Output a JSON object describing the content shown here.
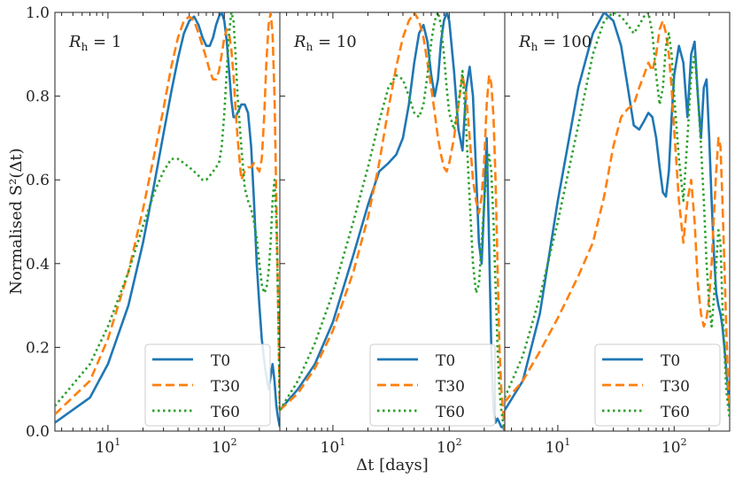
{
  "chart_data": {
    "type": "line",
    "ylabel": "Normalised S²(Δt)",
    "xlabel": "Δt [days]",
    "xscale": "log",
    "xlim": [
      3.5,
      300
    ],
    "ylim": [
      0.0,
      1.0
    ],
    "yticks": [
      "0.0",
      "0.2",
      "0.4",
      "0.6",
      "0.8",
      "1.0"
    ],
    "xticks": [
      {
        "value": 10,
        "base": "10",
        "exp": "1"
      },
      {
        "value": 100,
        "base": "10",
        "exp": "2"
      }
    ],
    "colors": {
      "T0": "#1f77b4",
      "T30": "#ff7f0e",
      "T60": "#2ca02c"
    },
    "legend": {
      "placement": "lower-center",
      "entries": [
        "T0",
        "T30",
        "T60"
      ]
    },
    "panels": [
      {
        "title_base": "R",
        "title_sub": "h",
        "title_value": " = 1",
        "series": [
          {
            "name": "T0",
            "x": [
              3.5,
              7,
              10,
              15,
              20,
              25,
              30,
              35,
              40,
              45,
              50,
              55,
              60,
              65,
              70,
              75,
              80,
              85,
              90,
              95,
              100,
              105,
              110,
              115,
              120,
              125,
              130,
              140,
              150,
              160,
              170,
              180,
              190,
              200,
              210,
              220,
              230,
              240,
              250,
              260,
              270,
              280,
              290,
              300
            ],
            "y": [
              0.02,
              0.08,
              0.16,
              0.3,
              0.45,
              0.59,
              0.71,
              0.81,
              0.89,
              0.95,
              0.98,
              0.99,
              0.97,
              0.94,
              0.92,
              0.92,
              0.94,
              0.97,
              0.99,
              1.0,
              0.98,
              0.93,
              0.86,
              0.79,
              0.75,
              0.75,
              0.76,
              0.78,
              0.78,
              0.76,
              0.68,
              0.55,
              0.4,
              0.3,
              0.22,
              0.17,
              0.13,
              0.1,
              0.13,
              0.16,
              0.12,
              0.06,
              0.03,
              0.01
            ]
          },
          {
            "name": "T30",
            "x": [
              3.5,
              7,
              10,
              15,
              20,
              25,
              30,
              35,
              40,
              45,
              50,
              55,
              60,
              65,
              70,
              75,
              80,
              85,
              90,
              95,
              100,
              105,
              110,
              115,
              120,
              125,
              130,
              140,
              150,
              160,
              170,
              180,
              190,
              200,
              210,
              220,
              230,
              240,
              250,
              260,
              270,
              280,
              290,
              300
            ],
            "y": [
              0.04,
              0.12,
              0.22,
              0.38,
              0.53,
              0.66,
              0.77,
              0.87,
              0.94,
              0.98,
              0.99,
              0.98,
              0.95,
              0.92,
              0.89,
              0.86,
              0.84,
              0.84,
              0.86,
              0.9,
              0.94,
              0.96,
              0.95,
              0.91,
              0.85,
              0.77,
              0.7,
              0.6,
              0.62,
              0.63,
              0.63,
              0.64,
              0.63,
              0.62,
              0.65,
              0.75,
              0.88,
              0.97,
              1.0,
              0.95,
              0.8,
              0.55,
              0.3,
              0.05
            ]
          },
          {
            "name": "T60",
            "x": [
              3.5,
              7,
              10,
              15,
              20,
              25,
              30,
              35,
              40,
              45,
              50,
              55,
              60,
              65,
              70,
              75,
              80,
              85,
              90,
              95,
              100,
              105,
              110,
              115,
              120,
              125,
              130,
              140,
              150,
              160,
              170,
              180,
              190,
              200,
              210,
              220,
              230,
              240,
              250,
              260,
              270,
              280,
              290,
              300
            ],
            "y": [
              0.06,
              0.16,
              0.25,
              0.38,
              0.49,
              0.57,
              0.62,
              0.65,
              0.65,
              0.64,
              0.63,
              0.62,
              0.61,
              0.6,
              0.6,
              0.61,
              0.62,
              0.63,
              0.64,
              0.68,
              0.76,
              0.86,
              0.95,
              1.0,
              0.98,
              0.9,
              0.8,
              0.68,
              0.58,
              0.55,
              0.53,
              0.5,
              0.46,
              0.4,
              0.35,
              0.33,
              0.34,
              0.38,
              0.45,
              0.55,
              0.6,
              0.5,
              0.3,
              0.05
            ]
          }
        ]
      },
      {
        "title_base": "R",
        "title_sub": "h",
        "title_value": " = 10",
        "series": [
          {
            "name": "T0",
            "x": [
              3.5,
              5,
              7,
              10,
              15,
              20,
              25,
              30,
              35,
              40,
              45,
              50,
              55,
              60,
              65,
              70,
              75,
              80,
              85,
              90,
              95,
              100,
              110,
              120,
              130,
              140,
              150,
              160,
              170,
              180,
              190,
              200,
              210,
              220,
              230,
              240,
              250,
              260,
              270,
              280,
              290,
              300
            ],
            "y": [
              0.05,
              0.1,
              0.16,
              0.26,
              0.42,
              0.54,
              0.62,
              0.64,
              0.66,
              0.7,
              0.78,
              0.88,
              0.95,
              0.97,
              0.93,
              0.85,
              0.8,
              0.84,
              0.93,
              0.98,
              1.0,
              0.98,
              0.86,
              0.72,
              0.67,
              0.82,
              0.87,
              0.8,
              0.62,
              0.45,
              0.4,
              0.55,
              0.7,
              0.45,
              0.2,
              0.05,
              0.02,
              0.03,
              0.02,
              0.01,
              0.01,
              0.0
            ]
          },
          {
            "name": "T30",
            "x": [
              3.5,
              5,
              7,
              10,
              15,
              20,
              25,
              30,
              35,
              40,
              45,
              50,
              55,
              60,
              65,
              70,
              75,
              80,
              85,
              90,
              95,
              100,
              110,
              120,
              130,
              140,
              150,
              160,
              170,
              180,
              190,
              200,
              210,
              220,
              230,
              240,
              250,
              260,
              270,
              280,
              290,
              300
            ],
            "y": [
              0.05,
              0.09,
              0.15,
              0.24,
              0.38,
              0.51,
              0.64,
              0.77,
              0.87,
              0.94,
              0.98,
              1.0,
              0.98,
              0.94,
              0.88,
              0.82,
              0.76,
              0.7,
              0.66,
              0.63,
              0.62,
              0.64,
              0.7,
              0.78,
              0.85,
              0.8,
              0.7,
              0.6,
              0.55,
              0.52,
              0.56,
              0.65,
              0.78,
              0.85,
              0.83,
              0.75,
              0.6,
              0.4,
              0.2,
              0.1,
              0.05,
              0.0
            ]
          },
          {
            "name": "T60",
            "x": [
              3.5,
              5,
              7,
              10,
              15,
              20,
              25,
              30,
              35,
              40,
              45,
              50,
              55,
              60,
              65,
              70,
              75,
              80,
              85,
              90,
              95,
              100,
              110,
              120,
              130,
              140,
              150,
              160,
              170,
              180,
              190,
              200,
              210,
              220,
              230,
              240,
              250,
              260,
              270,
              280,
              290,
              300
            ],
            "y": [
              0.05,
              0.12,
              0.21,
              0.33,
              0.5,
              0.63,
              0.74,
              0.82,
              0.85,
              0.84,
              0.8,
              0.76,
              0.75,
              0.78,
              0.85,
              0.93,
              0.98,
              1.0,
              0.97,
              0.9,
              0.82,
              0.76,
              0.72,
              0.78,
              0.86,
              0.72,
              0.55,
              0.4,
              0.33,
              0.35,
              0.45,
              0.55,
              0.62,
              0.66,
              0.62,
              0.5,
              0.35,
              0.2,
              0.1,
              0.05,
              0.02,
              0.0
            ]
          }
        ]
      },
      {
        "title_base": "R",
        "title_sub": "h",
        "title_value": " = 100",
        "series": [
          {
            "name": "T0",
            "x": [
              3.5,
              5,
              7,
              10,
              15,
              20,
              25,
              30,
              35,
              40,
              45,
              50,
              55,
              60,
              65,
              70,
              75,
              80,
              85,
              90,
              95,
              100,
              110,
              120,
              130,
              140,
              150,
              160,
              170,
              180,
              190,
              200,
              210,
              220,
              230,
              240,
              250,
              260,
              270,
              280,
              290,
              300
            ],
            "y": [
              0.05,
              0.12,
              0.28,
              0.55,
              0.82,
              0.95,
              1.0,
              0.98,
              0.92,
              0.82,
              0.73,
              0.72,
              0.74,
              0.76,
              0.75,
              0.7,
              0.63,
              0.57,
              0.56,
              0.62,
              0.75,
              0.85,
              0.92,
              0.88,
              0.75,
              0.9,
              0.93,
              0.8,
              0.7,
              0.82,
              0.84,
              0.7,
              0.55,
              0.42,
              0.33,
              0.3,
              0.28,
              0.25,
              0.2,
              0.15,
              0.1,
              0.05
            ]
          },
          {
            "name": "T30",
            "x": [
              3.5,
              5,
              7,
              10,
              15,
              20,
              25,
              30,
              35,
              40,
              45,
              50,
              55,
              60,
              65,
              70,
              75,
              80,
              85,
              90,
              95,
              100,
              110,
              120,
              130,
              140,
              150,
              160,
              170,
              180,
              190,
              200,
              210,
              220,
              230,
              240,
              250,
              260,
              270,
              280,
              290,
              300
            ],
            "y": [
              0.07,
              0.12,
              0.19,
              0.27,
              0.37,
              0.45,
              0.56,
              0.68,
              0.75,
              0.77,
              0.78,
              0.82,
              0.85,
              0.88,
              0.86,
              0.9,
              0.96,
              0.98,
              0.95,
              0.9,
              0.82,
              0.72,
              0.55,
              0.45,
              0.55,
              0.6,
              0.5,
              0.35,
              0.28,
              0.25,
              0.27,
              0.32,
              0.4,
              0.52,
              0.62,
              0.7,
              0.68,
              0.55,
              0.4,
              0.25,
              0.12,
              0.05
            ]
          },
          {
            "name": "T60",
            "x": [
              3.5,
              5,
              7,
              10,
              15,
              20,
              25,
              30,
              35,
              40,
              45,
              50,
              55,
              60,
              65,
              70,
              75,
              80,
              85,
              90,
              95,
              100,
              110,
              120,
              130,
              140,
              150,
              160,
              170,
              180,
              190,
              200,
              210,
              220,
              230,
              240,
              250,
              260,
              270,
              280,
              290,
              300
            ],
            "y": [
              0.08,
              0.18,
              0.32,
              0.5,
              0.73,
              0.9,
              0.98,
              1.0,
              0.99,
              0.97,
              0.95,
              0.97,
              0.99,
              1.0,
              0.95,
              0.85,
              0.78,
              0.82,
              0.92,
              0.95,
              0.9,
              0.8,
              0.65,
              0.55,
              0.7,
              0.85,
              0.9,
              0.8,
              0.68,
              0.55,
              0.4,
              0.3,
              0.25,
              0.32,
              0.4,
              0.48,
              0.45,
              0.3,
              0.2,
              0.1,
              0.06,
              0.03
            ]
          }
        ]
      }
    ]
  }
}
